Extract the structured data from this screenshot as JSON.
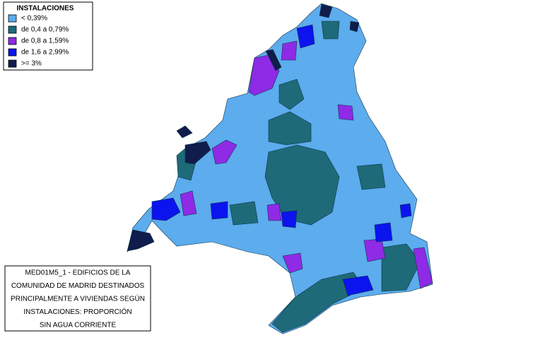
{
  "legend": {
    "title": "INSTALACIONES",
    "items": [
      {
        "label": "< 0,39%",
        "color": "#5cacee"
      },
      {
        "label": "de 0,4 a 0,79%",
        "color": "#1e6a78"
      },
      {
        "label": "de 0,8 a 1,59%",
        "color": "#8f2ae6"
      },
      {
        "label": "de 1,6 a 2,99%",
        "color": "#0b14ee"
      },
      {
        "label": ">= 3%",
        "color": "#101c4c"
      }
    ]
  },
  "caption": {
    "lines": [
      "MED01M5_1 - EDIFICIOS DE LA",
      "COMUNIDAD DE MADRID DESTINADOS",
      "PRINCIPALMENTE A VIVIENDAS  SEGÚN",
      "INSTALACIONES: PROPORCIÓN",
      "SIN AGUA CORRIENTE"
    ]
  }
}
